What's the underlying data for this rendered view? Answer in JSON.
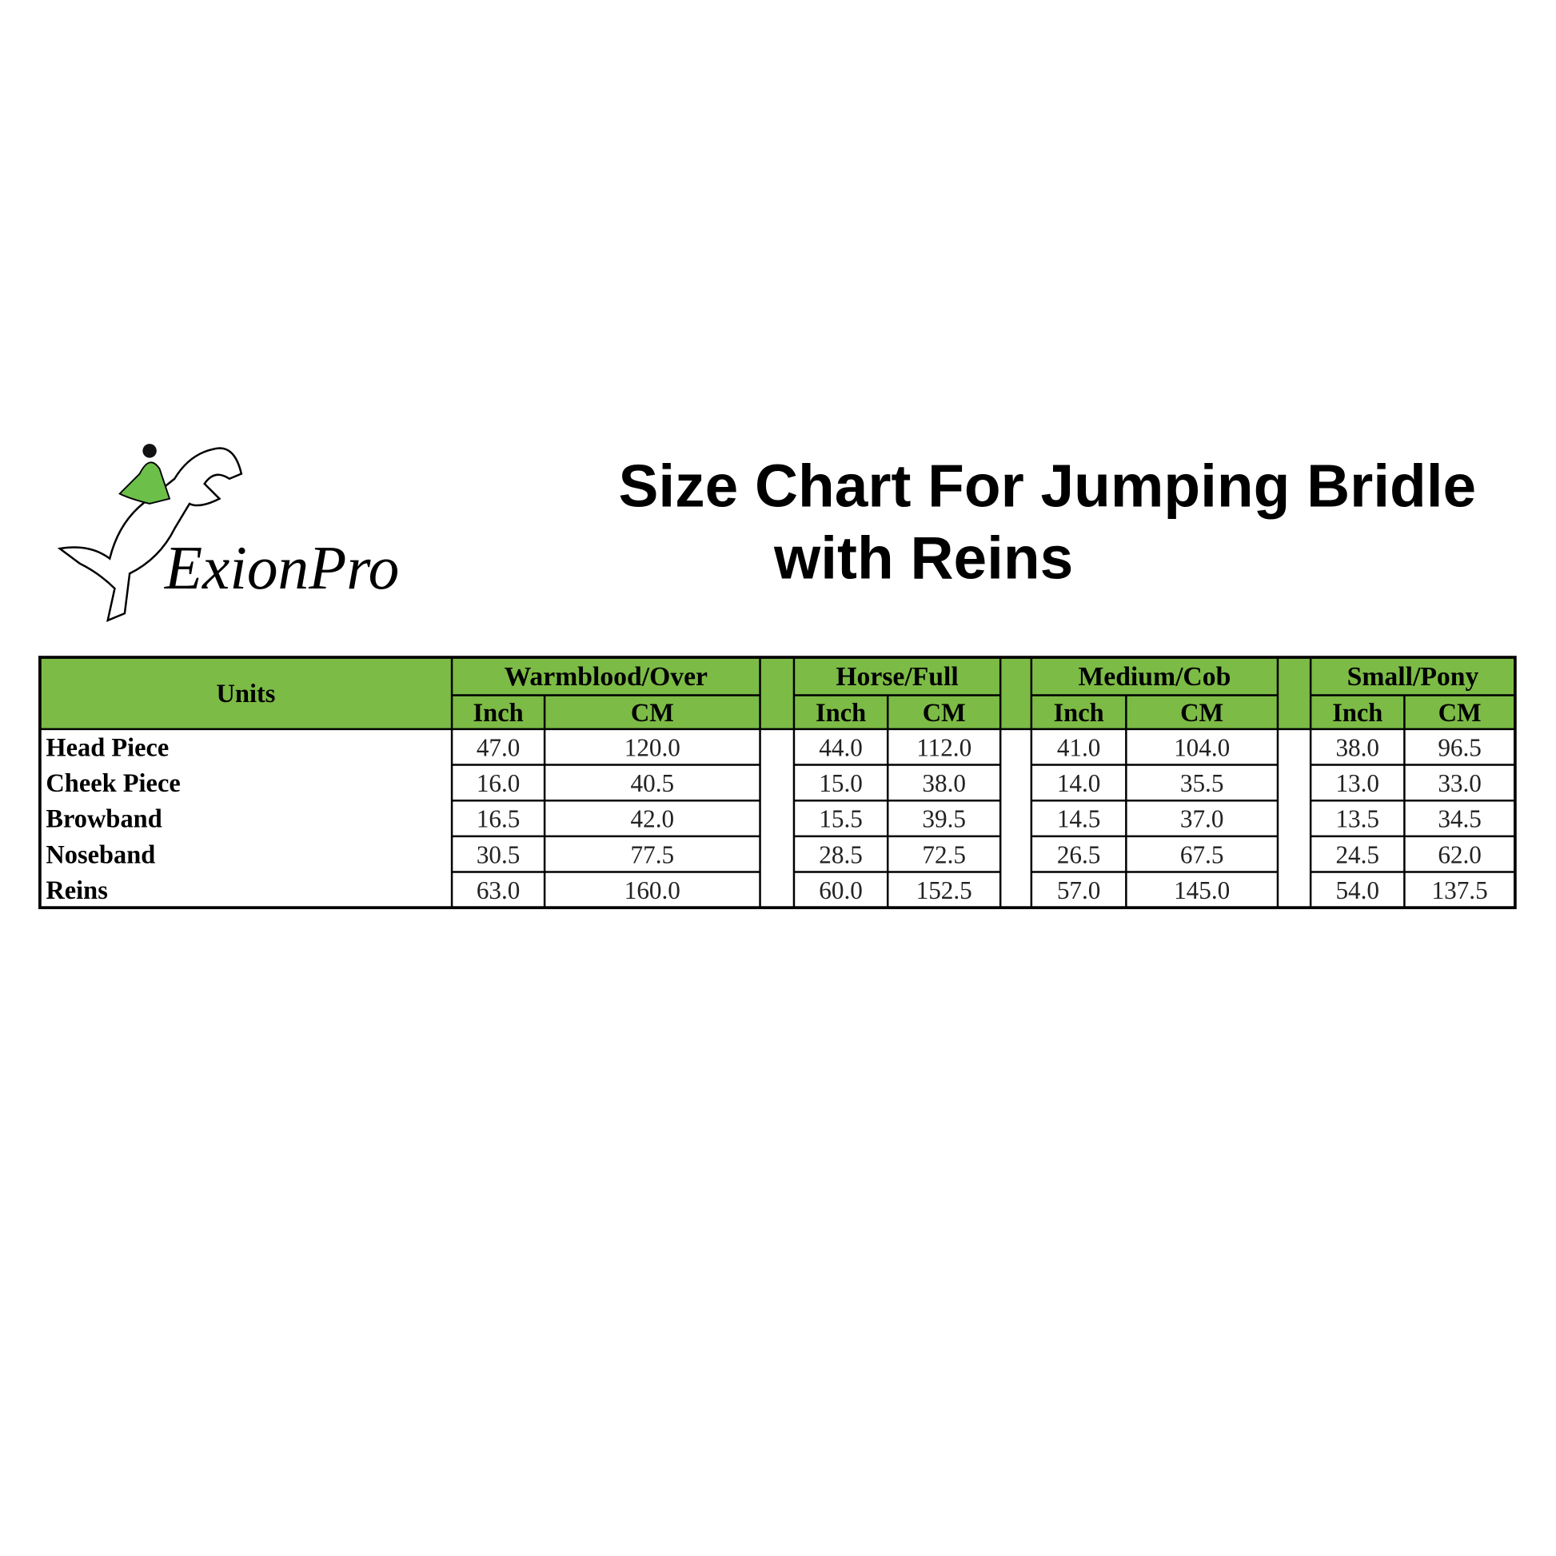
{
  "logo": {
    "text": "ExionPro"
  },
  "title": {
    "line1": "Size Chart For Jumping Bridle",
    "line2": "with Reins"
  },
  "table": {
    "units_header": "Units",
    "groups": [
      {
        "name": "Warmblood/Over",
        "columns": [
          "Inch",
          "CM"
        ]
      },
      {
        "name": "Horse/Full",
        "columns": [
          "Inch",
          "CM"
        ]
      },
      {
        "name": "Medium/Cob",
        "columns": [
          "Inch",
          "CM"
        ]
      },
      {
        "name": "Small/Pony",
        "columns": [
          "Inch",
          "CM"
        ]
      }
    ],
    "rows": [
      {
        "label": "Head Piece",
        "values": [
          "47.0",
          "120.0",
          "44.0",
          "112.0",
          "41.0",
          "104.0",
          "38.0",
          "96.5"
        ]
      },
      {
        "label": "Cheek Piece",
        "values": [
          "16.0",
          "40.5",
          "15.0",
          "38.0",
          "14.0",
          "35.5",
          "13.0",
          "33.0"
        ]
      },
      {
        "label": "Browband",
        "values": [
          "16.5",
          "42.0",
          "15.5",
          "39.5",
          "14.5",
          "37.0",
          "13.5",
          "34.5"
        ]
      },
      {
        "label": "Noseband",
        "values": [
          "30.5",
          "77.5",
          "28.5",
          "72.5",
          "26.5",
          "67.5",
          "24.5",
          "62.0"
        ]
      },
      {
        "label": "Reins",
        "values": [
          "63.0",
          "160.0",
          "60.0",
          "152.5",
          "57.0",
          "145.0",
          "54.0",
          "137.5"
        ]
      }
    ]
  }
}
